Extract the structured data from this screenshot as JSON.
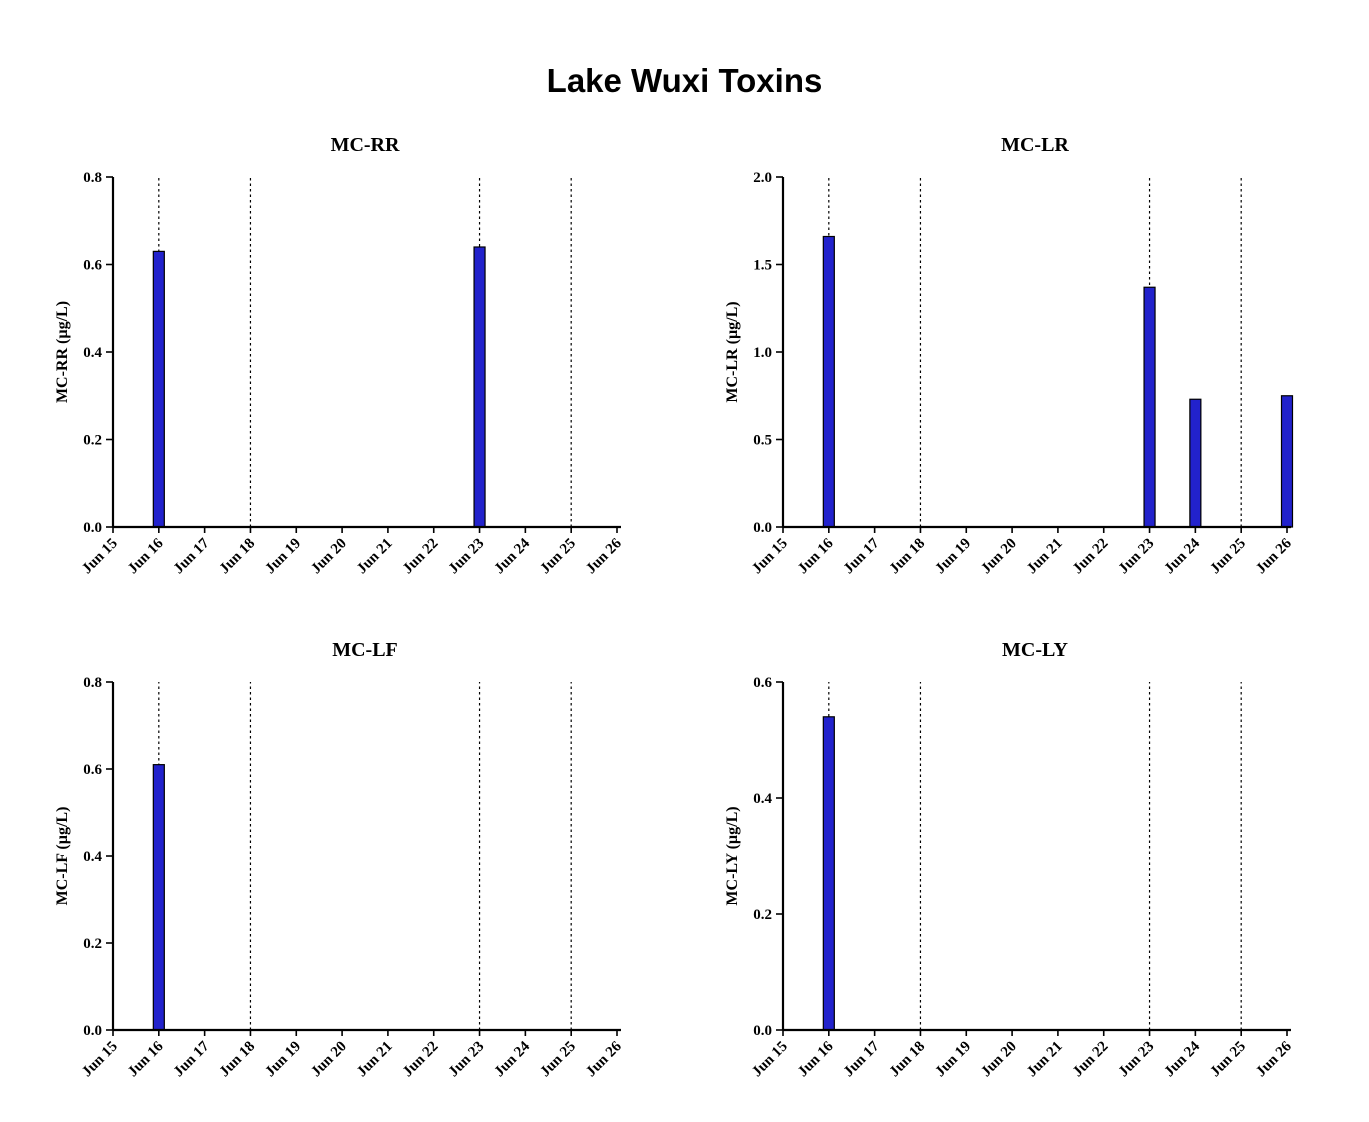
{
  "figure": {
    "title": "Lake Wuxi Toxins"
  },
  "chart_data": [
    {
      "type": "bar",
      "title": "MC-RR",
      "ylabel": "MC-RR (µg/L)",
      "categories": [
        "Jun 15",
        "Jun 16",
        "Jun 17",
        "Jun 18",
        "Jun 19",
        "Jun 20",
        "Jun 21",
        "Jun 22",
        "Jun 23",
        "Jun 24",
        "Jun 25",
        "Jun 26"
      ],
      "values": [
        null,
        0.63,
        null,
        null,
        null,
        null,
        null,
        null,
        0.64,
        null,
        null,
        null
      ],
      "ylim": [
        0,
        0.8
      ],
      "yticks": [
        0,
        0.2,
        0.4,
        0.6,
        0.8
      ],
      "ytick_labels": [
        "0.0",
        "0.2",
        "0.4",
        "0.6",
        "0.8"
      ],
      "dashed_lines_at": [
        "Jun 16",
        "Jun 18",
        "Jun 23",
        "Jun 25"
      ],
      "bar_color": "#2222cc",
      "grid": false,
      "legend": "none"
    },
    {
      "type": "bar",
      "title": "MC-LR",
      "ylabel": "MC-LR (µg/L)",
      "categories": [
        "Jun 15",
        "Jun 16",
        "Jun 17",
        "Jun 18",
        "Jun 19",
        "Jun 20",
        "Jun 21",
        "Jun 22",
        "Jun 23",
        "Jun 24",
        "Jun 25",
        "Jun 26"
      ],
      "values": [
        null,
        1.66,
        null,
        null,
        null,
        null,
        null,
        null,
        1.37,
        0.73,
        null,
        0.75
      ],
      "ylim": [
        0,
        2.0
      ],
      "yticks": [
        0,
        0.5,
        1.0,
        1.5,
        2.0
      ],
      "ytick_labels": [
        "0.0",
        "0.5",
        "1.0",
        "1.5",
        "2.0"
      ],
      "dashed_lines_at": [
        "Jun 16",
        "Jun 18",
        "Jun 23",
        "Jun 25"
      ],
      "bar_color": "#2222cc",
      "grid": false,
      "legend": "none"
    },
    {
      "type": "bar",
      "title": "MC-LF",
      "ylabel": "MC-LF (µg/L)",
      "categories": [
        "Jun 15",
        "Jun 16",
        "Jun 17",
        "Jun 18",
        "Jun 19",
        "Jun 20",
        "Jun 21",
        "Jun 22",
        "Jun 23",
        "Jun 24",
        "Jun 25",
        "Jun 26"
      ],
      "values": [
        null,
        0.61,
        null,
        null,
        null,
        null,
        null,
        null,
        null,
        null,
        null,
        null
      ],
      "ylim": [
        0,
        0.8
      ],
      "yticks": [
        0,
        0.2,
        0.4,
        0.6,
        0.8
      ],
      "ytick_labels": [
        "0.0",
        "0.2",
        "0.4",
        "0.6",
        "0.8"
      ],
      "dashed_lines_at": [
        "Jun 16",
        "Jun 18",
        "Jun 23",
        "Jun 25"
      ],
      "bar_color": "#2222cc",
      "grid": false,
      "legend": "none"
    },
    {
      "type": "bar",
      "title": "MC-LY",
      "ylabel": "MC-LY (µg/L)",
      "categories": [
        "Jun 15",
        "Jun 16",
        "Jun 17",
        "Jun 18",
        "Jun 19",
        "Jun 20",
        "Jun 21",
        "Jun 22",
        "Jun 23",
        "Jun 24",
        "Jun 25",
        "Jun 26"
      ],
      "values": [
        null,
        0.54,
        null,
        null,
        null,
        null,
        null,
        null,
        null,
        null,
        null,
        null
      ],
      "ylim": [
        0,
        0.6
      ],
      "yticks": [
        0,
        0.2,
        0.4,
        0.6
      ],
      "ytick_labels": [
        "0.0",
        "0.2",
        "0.4",
        "0.6"
      ],
      "dashed_lines_at": [
        "Jun 16",
        "Jun 18",
        "Jun 23",
        "Jun 25"
      ],
      "bar_color": "#2222cc",
      "grid": false,
      "legend": "none"
    }
  ]
}
